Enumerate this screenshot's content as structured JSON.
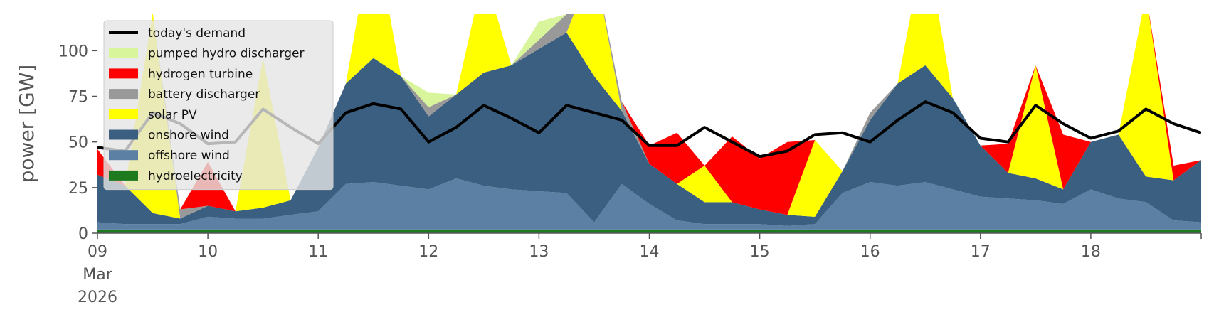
{
  "chart_data": {
    "type": "area",
    "ylabel": "power [GW]",
    "ylim": [
      0,
      120
    ],
    "yticks": [
      0,
      25,
      50,
      75,
      100
    ],
    "x_start": "2026-03-09 00:00",
    "x_end": "2026-03-19 00:00",
    "x": [
      "2026-03-09 00:00",
      "2026-03-09 06:00",
      "2026-03-09 12:00",
      "2026-03-09 18:00",
      "2026-03-10 00:00",
      "2026-03-10 06:00",
      "2026-03-10 12:00",
      "2026-03-10 18:00",
      "2026-03-11 00:00",
      "2026-03-11 06:00",
      "2026-03-11 12:00",
      "2026-03-11 18:00",
      "2026-03-12 00:00",
      "2026-03-12 06:00",
      "2026-03-12 12:00",
      "2026-03-12 18:00",
      "2026-03-13 00:00",
      "2026-03-13 06:00",
      "2026-03-13 12:00",
      "2026-03-13 18:00",
      "2026-03-14 00:00",
      "2026-03-14 06:00",
      "2026-03-14 12:00",
      "2026-03-14 18:00",
      "2026-03-15 00:00",
      "2026-03-15 06:00",
      "2026-03-15 12:00",
      "2026-03-15 18:00",
      "2026-03-16 00:00",
      "2026-03-16 06:00",
      "2026-03-16 12:00",
      "2026-03-16 18:00",
      "2026-03-17 00:00",
      "2026-03-17 06:00",
      "2026-03-17 12:00",
      "2026-03-17 18:00",
      "2026-03-18 00:00",
      "2026-03-18 06:00",
      "2026-03-18 12:00",
      "2026-03-18 18:00",
      "2026-03-19 00:00"
    ],
    "xtick_labels": [
      {
        "date": "2026-03-09",
        "label": "09",
        "sub": [
          "Mar",
          "2026"
        ]
      },
      {
        "date": "2026-03-10",
        "label": "10"
      },
      {
        "date": "2026-03-11",
        "label": "11"
      },
      {
        "date": "2026-03-12",
        "label": "12"
      },
      {
        "date": "2026-03-13",
        "label": "13"
      },
      {
        "date": "2026-03-14",
        "label": "14"
      },
      {
        "date": "2026-03-15",
        "label": "15"
      },
      {
        "date": "2026-03-16",
        "label": "16"
      },
      {
        "date": "2026-03-17",
        "label": "17"
      },
      {
        "date": "2026-03-18",
        "label": "18"
      }
    ],
    "series": [
      {
        "name": "hydroelectricity",
        "color": "#1e7a1e",
        "values": [
          2,
          2,
          2,
          2,
          2,
          2,
          2,
          2,
          2,
          2,
          2,
          2,
          2,
          2,
          2,
          2,
          2,
          2,
          2,
          2,
          2,
          2,
          2,
          2,
          2,
          2,
          2,
          2,
          2,
          2,
          2,
          2,
          2,
          2,
          2,
          2,
          2,
          2,
          2,
          2,
          2
        ]
      },
      {
        "name": "offshore wind",
        "color": "#5b80a3",
        "values": [
          4,
          3,
          3,
          3,
          7,
          6,
          6,
          8,
          10,
          25,
          26,
          24,
          22,
          28,
          24,
          22,
          21,
          20,
          4,
          25,
          14,
          5,
          3,
          3,
          3,
          2,
          3,
          20,
          26,
          24,
          26,
          22,
          18,
          17,
          16,
          14,
          22,
          17,
          15,
          5,
          4
        ]
      },
      {
        "name": "onshore wind",
        "color": "#3a5f80",
        "values": [
          26,
          21,
          6,
          3,
          6,
          4,
          6,
          8,
          35,
          55,
          68,
          60,
          40,
          46,
          62,
          68,
          78,
          88,
          80,
          40,
          22,
          20,
          12,
          12,
          8,
          6,
          4,
          12,
          34,
          56,
          64,
          50,
          28,
          14,
          12,
          8,
          26,
          35,
          14,
          22,
          34
        ]
      },
      {
        "name": "solar PV",
        "color": "#ffff00",
        "values": [
          0,
          0,
          110,
          0,
          0,
          0,
          82,
          0,
          0,
          0,
          72,
          0,
          0,
          0,
          55,
          0,
          0,
          0,
          62,
          0,
          0,
          0,
          20,
          0,
          0,
          0,
          42,
          0,
          0,
          0,
          70,
          0,
          0,
          0,
          62,
          0,
          0,
          0,
          100,
          0,
          0
        ]
      },
      {
        "name": "battery discharger",
        "color": "#999999",
        "values": [
          0,
          0,
          0,
          5,
          0,
          0,
          0,
          0,
          0,
          0,
          0,
          0,
          5,
          0,
          0,
          0,
          5,
          10,
          0,
          5,
          0,
          0,
          0,
          0,
          0,
          0,
          0,
          0,
          4,
          0,
          0,
          0,
          0,
          0,
          0,
          0,
          0,
          0,
          0,
          0,
          0
        ]
      },
      {
        "name": "hydrogen turbine",
        "color": "#ff0000",
        "values": [
          14,
          0,
          0,
          0,
          24,
          0,
          0,
          0,
          0,
          0,
          0,
          0,
          0,
          0,
          0,
          0,
          0,
          0,
          0,
          0,
          10,
          28,
          0,
          36,
          28,
          40,
          0,
          0,
          0,
          0,
          0,
          0,
          0,
          16,
          0,
          30,
          0,
          0,
          0,
          8,
          0
        ]
      },
      {
        "name": "pumped hydro discharger",
        "color": "#d9f59b",
        "values": [
          0,
          0,
          0,
          0,
          0,
          0,
          0,
          0,
          0,
          0,
          0,
          0,
          8,
          0,
          0,
          0,
          10,
          0,
          0,
          0,
          0,
          0,
          0,
          0,
          0,
          0,
          0,
          0,
          0,
          0,
          0,
          0,
          0,
          0,
          0,
          0,
          0,
          0,
          0,
          0,
          0
        ]
      }
    ],
    "demand": {
      "name": "today's demand",
      "color": "#000000",
      "values": [
        47,
        45,
        66,
        60,
        49,
        50,
        68,
        58,
        49,
        66,
        71,
        68,
        50,
        58,
        70,
        63,
        55,
        70,
        66,
        62,
        48,
        48,
        58,
        50,
        42,
        45,
        54,
        55,
        50,
        62,
        72,
        66,
        52,
        50,
        70,
        60,
        52,
        56,
        68,
        60,
        55
      ]
    },
    "legend": {
      "position": "upper-left",
      "entries": [
        {
          "name": "today's demand",
          "kind": "line",
          "color": "#000000"
        },
        {
          "name": "pumped hydro discharger",
          "kind": "patch",
          "color": "#d9f59b"
        },
        {
          "name": "hydrogen turbine",
          "kind": "patch",
          "color": "#ff0000"
        },
        {
          "name": "battery discharger",
          "kind": "patch",
          "color": "#999999"
        },
        {
          "name": "solar PV",
          "kind": "patch",
          "color": "#ffff00"
        },
        {
          "name": "onshore wind",
          "kind": "patch",
          "color": "#3a5f80"
        },
        {
          "name": "offshore wind",
          "kind": "patch",
          "color": "#5b80a3"
        },
        {
          "name": "hydroelectricity",
          "kind": "patch",
          "color": "#1e7a1e"
        }
      ]
    },
    "grid": false
  }
}
